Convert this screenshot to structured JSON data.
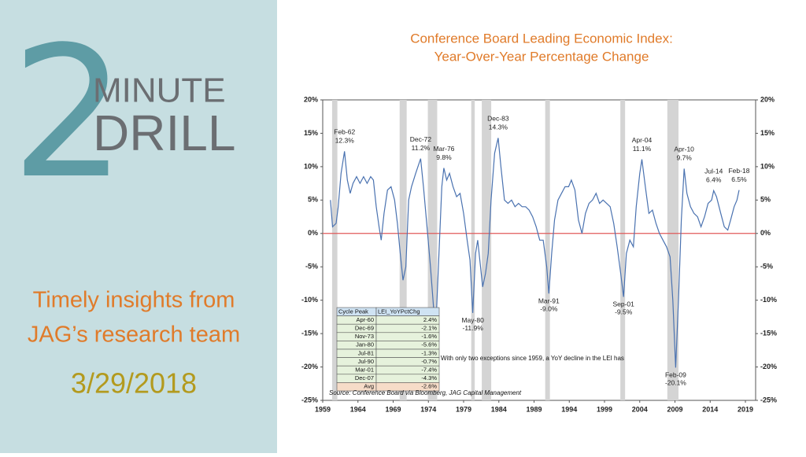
{
  "panel": {
    "number": "2",
    "word1": "MINUTE",
    "word2": "DRILL",
    "tagline": [
      "Timely insights from",
      "JAG’s research team"
    ],
    "date": "3/29/2018"
  },
  "chart_data": {
    "type": "line",
    "title": [
      "Conference Board Leading Economic Index:",
      "Year-Over-Year Percentage Change"
    ],
    "color": "#4a72b0",
    "zero_line_color": "#e05a5a",
    "recession_color": "#d4d4d4",
    "xlim": [
      1959,
      2020.45
    ],
    "xticks": [
      1959,
      1964,
      1969,
      1974,
      1979,
      1984,
      1989,
      1994,
      1999,
      2004,
      2009,
      2014,
      2019
    ],
    "ylim": [
      -25,
      20
    ],
    "yticks": [
      {
        "value": 20,
        "label": "20%"
      },
      {
        "value": 15,
        "label": "15%"
      },
      {
        "value": 10,
        "label": "10%"
      },
      {
        "value": 5,
        "label": "5%"
      },
      {
        "value": 0,
        "label": "0%"
      },
      {
        "value": -5,
        "label": "-5%"
      },
      {
        "value": -10,
        "label": "-10%"
      },
      {
        "value": -15,
        "label": "-15%"
      },
      {
        "value": -20,
        "label": "-20%"
      },
      {
        "value": -25,
        "label": "-25%"
      }
    ],
    "y2lim": [
      -25,
      20
    ],
    "y2ticks": [
      {
        "value": 20,
        "label": "20%"
      },
      {
        "value": 15,
        "label": "15%"
      },
      {
        "value": 10,
        "label": "10%"
      },
      {
        "value": 5,
        "label": "5%"
      },
      {
        "value": 0,
        "label": "0%"
      },
      {
        "value": -5,
        "label": "-5%"
      },
      {
        "value": -10,
        "label": "-10%"
      },
      {
        "value": -15,
        "label": "-15%"
      },
      {
        "value": -20,
        "label": "-20%"
      },
      {
        "value": -25,
        "label": "-25%"
      }
    ],
    "recessions": [
      {
        "start": 1960.33,
        "end": 1961.08
      },
      {
        "start": 1969.92,
        "end": 1970.92
      },
      {
        "start": 1973.92,
        "end": 1975.25
      },
      {
        "start": 1980.08,
        "end": 1980.58
      },
      {
        "start": 1981.58,
        "end": 1982.92
      },
      {
        "start": 1990.58,
        "end": 1991.25
      },
      {
        "start": 2001.25,
        "end": 2001.92
      },
      {
        "start": 2007.92,
        "end": 2009.5
      }
    ],
    "x": [
      1960.1,
      1960.4,
      1960.9,
      1961.2,
      1961.6,
      1962.1,
      1962.5,
      1962.9,
      1963.3,
      1963.8,
      1964.3,
      1964.8,
      1965.3,
      1965.8,
      1966.2,
      1966.6,
      1967.0,
      1967.3,
      1967.7,
      1968.2,
      1968.7,
      1969.2,
      1969.6,
      1970.0,
      1970.4,
      1970.8,
      1971.2,
      1971.6,
      1972.2,
      1972.9,
      1973.3,
      1973.8,
      1974.3,
      1974.8,
      1975.1,
      1975.5,
      1975.9,
      1976.2,
      1976.6,
      1977.0,
      1977.5,
      1978.0,
      1978.5,
      1979.0,
      1979.5,
      1979.9,
      1980.3,
      1980.7,
      1981.0,
      1981.3,
      1981.7,
      1982.1,
      1982.5,
      1982.9,
      1983.4,
      1983.9,
      1984.3,
      1984.8,
      1985.3,
      1985.8,
      1986.3,
      1986.8,
      1987.3,
      1987.8,
      1988.3,
      1988.8,
      1989.3,
      1989.8,
      1990.3,
      1990.8,
      1991.1,
      1991.5,
      1991.9,
      1992.4,
      1992.9,
      1993.4,
      1993.9,
      1994.3,
      1994.8,
      1995.3,
      1995.8,
      1996.3,
      1996.8,
      1997.3,
      1997.8,
      1998.3,
      1998.8,
      1999.3,
      1999.8,
      2000.3,
      2000.8,
      2001.3,
      2001.7,
      2002.1,
      2002.6,
      2003.1,
      2003.5,
      2004.0,
      2004.3,
      2004.8,
      2005.3,
      2005.8,
      2006.3,
      2006.8,
      2007.3,
      2007.8,
      2008.3,
      2008.7,
      2009.1,
      2009.5,
      2009.9,
      2010.3,
      2010.7,
      2011.2,
      2011.7,
      2012.2,
      2012.7,
      2013.2,
      2013.7,
      2014.2,
      2014.5,
      2014.9,
      2015.5,
      2016.0,
      2016.5,
      2016.9,
      2017.4,
      2017.8,
      2018.1
    ],
    "values": [
      5,
      1,
      1.5,
      4,
      9,
      12.3,
      8,
      6,
      7.5,
      8.5,
      7.5,
      8.5,
      7.5,
      8.5,
      8,
      4,
      1,
      -1,
      3,
      6.5,
      7,
      5,
      1.5,
      -3,
      -7,
      -5,
      5,
      7,
      9,
      11.2,
      7,
      1,
      -5,
      -12,
      -13,
      -3,
      7,
      9.8,
      8,
      9,
      7,
      5.5,
      6,
      3,
      -1,
      -4,
      -11.9,
      -3,
      -1,
      -4,
      -8,
      -6,
      -3,
      5,
      12,
      14.3,
      10,
      5,
      4.5,
      5,
      4,
      4.5,
      4,
      4,
      3.5,
      2.5,
      1,
      -1,
      -1,
      -5,
      -9.0,
      -3,
      2,
      5,
      6,
      7,
      7,
      8,
      6.5,
      2,
      0,
      3,
      4.5,
      5,
      6,
      4.5,
      5,
      4.5,
      4,
      1.5,
      -2,
      -6,
      -9.5,
      -3,
      -1,
      -2,
      4,
      9,
      11.1,
      7,
      3,
      3.5,
      1.5,
      0,
      -1,
      -2,
      -3.5,
      -10,
      -20.1,
      -10,
      2,
      9.7,
      6,
      4,
      3,
      2.5,
      1,
      2.5,
      4.5,
      5,
      6.4,
      5.5,
      3,
      1,
      0.5,
      2,
      4,
      5,
      6.5
    ],
    "annotations": [
      {
        "label": "Feb-62",
        "value_label": "12.3%",
        "x": 1962.1,
        "y": 12.3
      },
      {
        "label": "Dec-72",
        "value_label": "11.2%",
        "x": 1972.9,
        "y": 11.2
      },
      {
        "label": "Mar-76",
        "value_label": "9.8%",
        "x": 1976.2,
        "y": 9.8
      },
      {
        "label": "May-80",
        "value_label": "-11.9%",
        "x": 1980.3,
        "y": -11.9
      },
      {
        "label": "Dec-83",
        "value_label": "14.3%",
        "x": 1983.9,
        "y": 14.3
      },
      {
        "label": "Mar-91",
        "value_label": "-9.0%",
        "x": 1991.1,
        "y": -9.0
      },
      {
        "label": "Sep-01",
        "value_label": "-9.5%",
        "x": 2001.7,
        "y": -9.5
      },
      {
        "label": "Apr-04",
        "value_label": "11.1%",
        "x": 2004.3,
        "y": 11.1
      },
      {
        "label": "Feb-09",
        "value_label": "-20.1%",
        "x": 2009.1,
        "y": -20.1
      },
      {
        "label": "Apr-10",
        "value_label": "9.7%",
        "x": 2010.3,
        "y": 9.7
      },
      {
        "label": "Jul-14",
        "value_label": "6.4%",
        "x": 2014.5,
        "y": 6.4
      },
      {
        "label": "Feb-18",
        "value_label": "6.5%",
        "x": 2018.1,
        "y": 6.5
      }
    ],
    "table": {
      "header": [
        "Cycle Peak",
        "LEI_YoYPctChg"
      ],
      "rows": [
        [
          "Apr-60",
          "2.4%"
        ],
        [
          "Dec-69",
          "-2.1%"
        ],
        [
          "Nov-73",
          "-1.6%"
        ],
        [
          "Jan-80",
          "-5.6%"
        ],
        [
          "Jul-81",
          "-1.3%"
        ],
        [
          "Jul-90",
          "-0.7%"
        ],
        [
          "Mar-01",
          "-7.4%"
        ],
        [
          "Dec-07",
          "-4.3%"
        ],
        [
          "Avg",
          "-2.6%"
        ]
      ]
    },
    "note": "With only two exceptions since 1959, a YoY decline in the LEI has",
    "source": "Source: Conference Board via Bloomberg, JAG Capital Management"
  }
}
